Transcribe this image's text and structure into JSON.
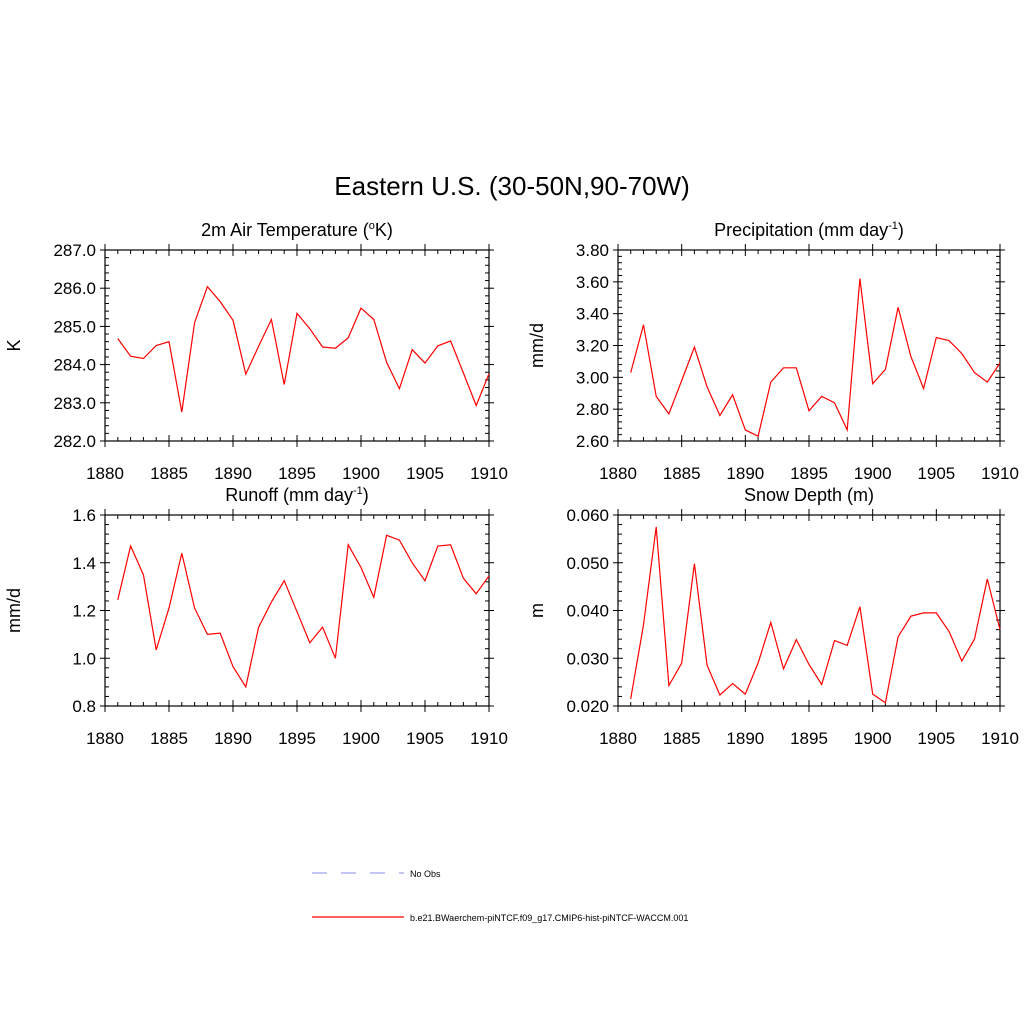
{
  "figure": {
    "title": "Eastern U.S. (30-50N,90-70W)",
    "legend": {
      "obs_label": "No Obs",
      "obs_color": "#9fa3e6",
      "model_label": "b.e21.BWaerchem-piNTCF.f09_g17.CMIP6-hist-piNTCF-WACCM.001",
      "model_color": "#ff0000"
    }
  },
  "chart_data": [
    {
      "type": "line",
      "title": "2m Air Temperature (°K)",
      "title_parts": [
        "2m Air Temperature (",
        "o",
        "K)"
      ],
      "ylabel": "K",
      "xlim": [
        1880,
        1910
      ],
      "ylim": [
        282.0,
        287.0
      ],
      "xticks": [
        "1880",
        "1885",
        "1890",
        "1895",
        "1900",
        "1905",
        "1910"
      ],
      "yticks": [
        "282.0",
        "283.0",
        "284.0",
        "285.0",
        "286.0",
        "287.0"
      ],
      "x": [
        1881,
        1882,
        1883,
        1884,
        1885,
        1886,
        1887,
        1888,
        1889,
        1890,
        1891,
        1892,
        1893,
        1894,
        1895,
        1896,
        1897,
        1898,
        1899,
        1900,
        1901,
        1902,
        1903,
        1904,
        1905,
        1906,
        1907,
        1908,
        1909,
        1910
      ],
      "series": [
        {
          "values": [
            284.68,
            284.22,
            284.16,
            284.5,
            284.6,
            282.76,
            285.1,
            286.04,
            285.65,
            285.16,
            283.75,
            284.48,
            285.18,
            283.48,
            285.34,
            284.94,
            284.46,
            284.43,
            284.7,
            285.48,
            285.18,
            284.06,
            283.37,
            284.39,
            284.04,
            284.49,
            284.62,
            283.78,
            282.93,
            283.76
          ]
        }
      ]
    },
    {
      "type": "line",
      "title": "Precipitation (mm day-1)",
      "title_parts": [
        "Precipitation (mm day",
        "-1",
        ")"
      ],
      "ylabel": "mm/d",
      "xlim": [
        1880,
        1910
      ],
      "ylim": [
        2.6,
        3.8
      ],
      "xticks": [
        "1880",
        "1885",
        "1890",
        "1895",
        "1900",
        "1905",
        "1910"
      ],
      "yticks": [
        "2.60",
        "2.80",
        "3.00",
        "3.20",
        "3.40",
        "3.60",
        "3.80"
      ],
      "x": [
        1881,
        1882,
        1883,
        1884,
        1885,
        1886,
        1887,
        1888,
        1889,
        1890,
        1891,
        1892,
        1893,
        1894,
        1895,
        1896,
        1897,
        1898,
        1899,
        1900,
        1901,
        1902,
        1903,
        1904,
        1905,
        1906,
        1907,
        1908,
        1909,
        1910
      ],
      "series": [
        {
          "values": [
            3.03,
            3.33,
            2.88,
            2.77,
            2.98,
            3.19,
            2.94,
            2.76,
            2.89,
            2.67,
            2.63,
            2.97,
            3.06,
            3.06,
            2.79,
            2.88,
            2.84,
            2.67,
            3.62,
            2.96,
            3.05,
            3.44,
            3.13,
            2.93,
            3.25,
            3.23,
            3.15,
            3.03,
            2.97,
            3.09
          ]
        }
      ]
    },
    {
      "type": "line",
      "title": "Runoff (mm day-1)",
      "title_parts": [
        "Runoff (mm day",
        "-1",
        ")"
      ],
      "ylabel": "mm/d",
      "xlim": [
        1880,
        1910
      ],
      "ylim": [
        0.8,
        1.6
      ],
      "xticks": [
        "1880",
        "1885",
        "1890",
        "1895",
        "1900",
        "1905",
        "1910"
      ],
      "yticks": [
        "0.8",
        "1.0",
        "1.2",
        "1.4",
        "1.6"
      ],
      "x": [
        1881,
        1882,
        1883,
        1884,
        1885,
        1886,
        1887,
        1888,
        1889,
        1890,
        1891,
        1892,
        1893,
        1894,
        1895,
        1896,
        1897,
        1898,
        1899,
        1900,
        1901,
        1902,
        1903,
        1904,
        1905,
        1906,
        1907,
        1908,
        1909,
        1910
      ],
      "series": [
        {
          "values": [
            1.245,
            1.47,
            1.35,
            1.035,
            1.21,
            1.44,
            1.21,
            1.1,
            1.105,
            0.965,
            0.88,
            1.13,
            1.235,
            1.325,
            1.195,
            1.065,
            1.13,
            1.0,
            1.475,
            1.38,
            1.255,
            1.515,
            1.495,
            1.4,
            1.325,
            1.47,
            1.475,
            1.335,
            1.27,
            1.345
          ]
        }
      ]
    },
    {
      "type": "line",
      "title": "Snow Depth (m)",
      "title_parts": [
        "Snow Depth (m)",
        "",
        ""
      ],
      "ylabel": "m",
      "xlim": [
        1880,
        1910
      ],
      "ylim": [
        0.02,
        0.06
      ],
      "xticks": [
        "1880",
        "1885",
        "1890",
        "1895",
        "1900",
        "1905",
        "1910"
      ],
      "yticks": [
        "0.020",
        "0.030",
        "0.040",
        "0.050",
        "0.060"
      ],
      "x": [
        1881,
        1882,
        1883,
        1884,
        1885,
        1886,
        1887,
        1888,
        1889,
        1890,
        1891,
        1892,
        1893,
        1894,
        1895,
        1896,
        1897,
        1898,
        1899,
        1900,
        1901,
        1902,
        1903,
        1904,
        1905,
        1906,
        1907,
        1908,
        1909,
        1910
      ],
      "series": [
        {
          "values": [
            0.0215,
            0.037,
            0.0575,
            0.0243,
            0.029,
            0.0498,
            0.0285,
            0.0223,
            0.0247,
            0.0225,
            0.029,
            0.0375,
            0.0278,
            0.0339,
            0.0287,
            0.0245,
            0.0337,
            0.0327,
            0.0408,
            0.0225,
            0.0207,
            0.0345,
            0.0388,
            0.0395,
            0.0395,
            0.0356,
            0.0294,
            0.034,
            0.0466,
            0.036
          ]
        }
      ]
    }
  ]
}
